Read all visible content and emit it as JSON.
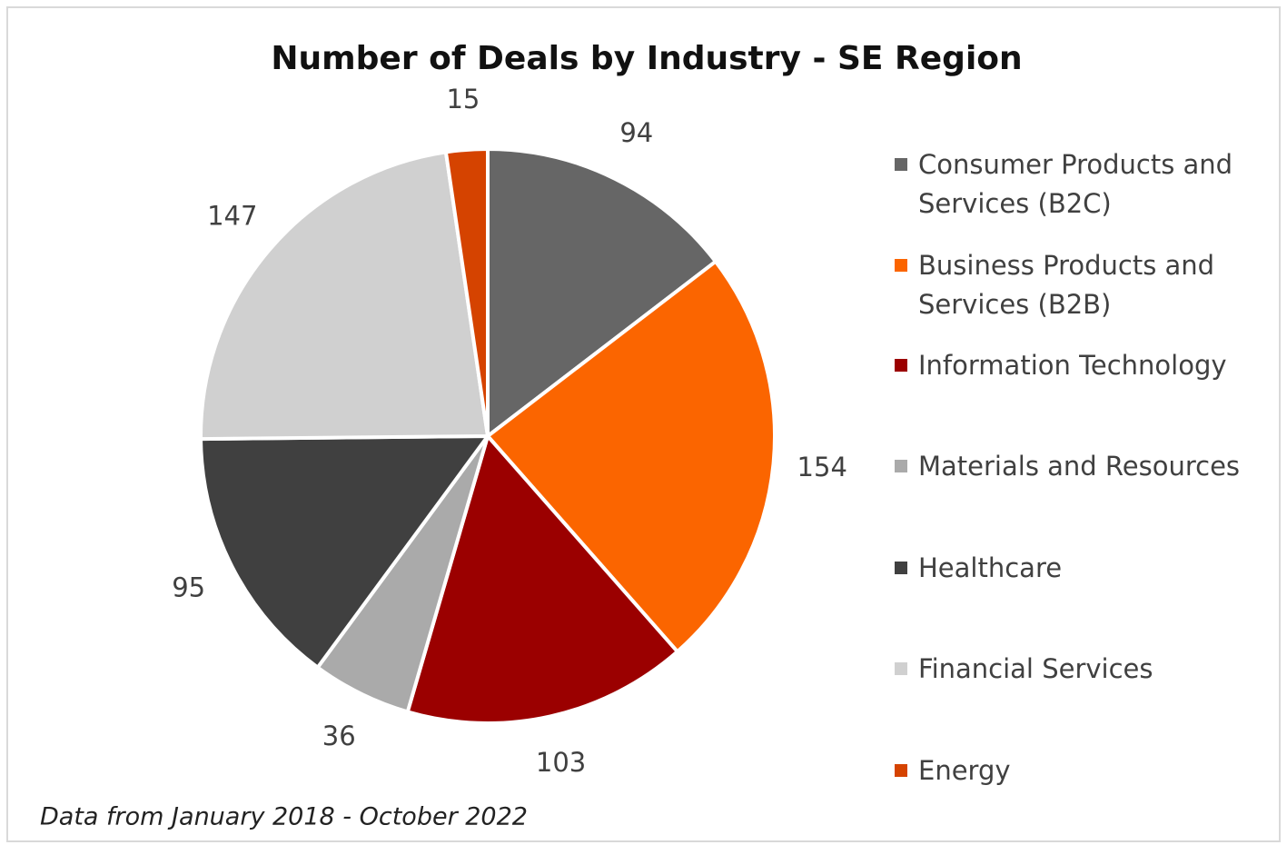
{
  "chart_data": {
    "type": "pie",
    "title": "Number of Deals by Industry - SE Region",
    "subtitle": "Data from January 2018 - October 2022",
    "categories": [
      "Consumer Products and Services (B2C)",
      "Business Products and Services (B2B)",
      "Information Technology",
      "Materials and Resources",
      "Healthcare",
      "Financial Services",
      "Energy"
    ],
    "values": [
      94,
      154,
      103,
      36,
      95,
      147,
      15
    ],
    "colors": [
      "#666666",
      "#fb6500",
      "#9b0000",
      "#aaaaaa",
      "#404040",
      "#d0d0d0",
      "#d54300"
    ],
    "legend": "right"
  }
}
